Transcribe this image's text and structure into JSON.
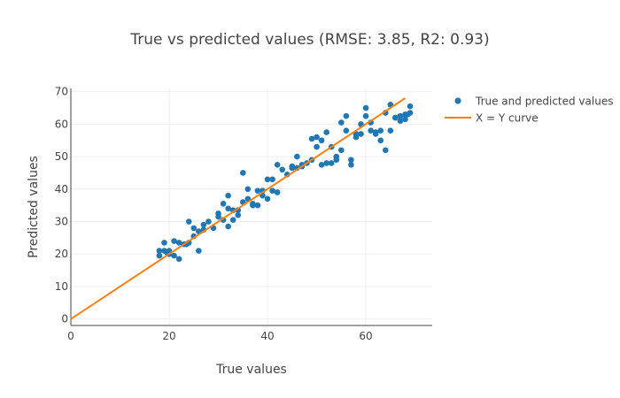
{
  "colors": {
    "scatter": "#1f77b4",
    "line": "#ff7f0e",
    "grid": "#eeeeee",
    "text": "#444444"
  },
  "chart_data": {
    "type": "scatter",
    "title": "True vs predicted values (RMSE: 3.85, R2: 0.93)",
    "xlabel": "True values",
    "ylabel": "Predicted values",
    "xlim": [
      0,
      73.5
    ],
    "ylim": [
      -2,
      71
    ],
    "xticks": [
      0,
      20,
      40,
      60
    ],
    "yticks": [
      0,
      10,
      20,
      30,
      40,
      50,
      60,
      70
    ],
    "legend_position": "top-right",
    "series": [
      {
        "name": "True and predicted values",
        "mode": "markers",
        "color": "#1f77b4",
        "points": [
          [
            18,
            19.5
          ],
          [
            18,
            21
          ],
          [
            19,
            21
          ],
          [
            19,
            23.5
          ],
          [
            19.5,
            20.5
          ],
          [
            20,
            21
          ],
          [
            20,
            20
          ],
          [
            21,
            24
          ],
          [
            21,
            19.5
          ],
          [
            22,
            18.5
          ],
          [
            22,
            23.5
          ],
          [
            23,
            23
          ],
          [
            23.5,
            23
          ],
          [
            24,
            30
          ],
          [
            24,
            23.5
          ],
          [
            25,
            28
          ],
          [
            25,
            25.5
          ],
          [
            26,
            21
          ],
          [
            26,
            27
          ],
          [
            27,
            29
          ],
          [
            27,
            27.5
          ],
          [
            28,
            30
          ],
          [
            29,
            28
          ],
          [
            30,
            31.5
          ],
          [
            30,
            32.5
          ],
          [
            31,
            30.5
          ],
          [
            31,
            35.5
          ],
          [
            32,
            38
          ],
          [
            32,
            34
          ],
          [
            32,
            28.5
          ],
          [
            33,
            33.5
          ],
          [
            33,
            30.5
          ],
          [
            34,
            32
          ],
          [
            34,
            33.5
          ],
          [
            35,
            45
          ],
          [
            35,
            36
          ],
          [
            36,
            37
          ],
          [
            36,
            40
          ],
          [
            37,
            35
          ],
          [
            37,
            35.5
          ],
          [
            38,
            39.5
          ],
          [
            38,
            35
          ],
          [
            39,
            38
          ],
          [
            39,
            39.5
          ],
          [
            40,
            37
          ],
          [
            40,
            43
          ],
          [
            41,
            39.5
          ],
          [
            41,
            43
          ],
          [
            42,
            39
          ],
          [
            42,
            47.5
          ],
          [
            43,
            46
          ],
          [
            44,
            44.5
          ],
          [
            45,
            46.5
          ],
          [
            45,
            47
          ],
          [
            46,
            46.5
          ],
          [
            46,
            50
          ],
          [
            47,
            47
          ],
          [
            47,
            47.5
          ],
          [
            48,
            48
          ],
          [
            49,
            49
          ],
          [
            49,
            55.5
          ],
          [
            50,
            53
          ],
          [
            50,
            56
          ],
          [
            51,
            55
          ],
          [
            51,
            47.5
          ],
          [
            52,
            57.5
          ],
          [
            52,
            48
          ],
          [
            53,
            48
          ],
          [
            53,
            53
          ],
          [
            54,
            50
          ],
          [
            54,
            49
          ],
          [
            55,
            60.5
          ],
          [
            55,
            52
          ],
          [
            56,
            62.5
          ],
          [
            56,
            58
          ],
          [
            57,
            47.5
          ],
          [
            57,
            49
          ],
          [
            58,
            56
          ],
          [
            58,
            57
          ],
          [
            59,
            60
          ],
          [
            59,
            57
          ],
          [
            60,
            65
          ],
          [
            60,
            62.5
          ],
          [
            61,
            60.5
          ],
          [
            61,
            58
          ],
          [
            62,
            57
          ],
          [
            62,
            57.5
          ],
          [
            63,
            58
          ],
          [
            63,
            55
          ],
          [
            64,
            52
          ],
          [
            64,
            63.5
          ],
          [
            65,
            66
          ],
          [
            65,
            58
          ],
          [
            66,
            62
          ],
          [
            66,
            62
          ],
          [
            67,
            62.5
          ],
          [
            67,
            61
          ],
          [
            68,
            63
          ],
          [
            68,
            61.5
          ],
          [
            69,
            63.5
          ],
          [
            69,
            65.5
          ],
          [
            68.5,
            63
          ]
        ]
      },
      {
        "name": "X = Y curve",
        "mode": "lines",
        "color": "#ff7f0e",
        "points": [
          [
            0,
            0
          ],
          [
            68,
            68
          ]
        ]
      }
    ]
  }
}
